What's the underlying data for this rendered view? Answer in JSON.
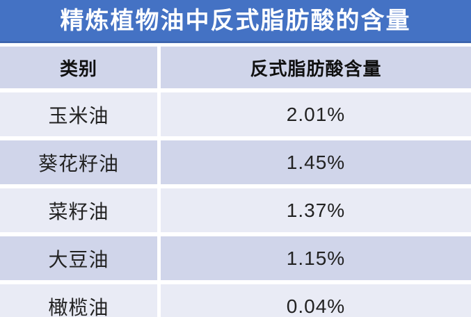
{
  "title": "精炼植物油中反式脂肪酸的含量",
  "table": {
    "columns": [
      "类别",
      "反式脂肪酸含量"
    ],
    "rows": [
      {
        "category": "玉米油",
        "value": "2.01%"
      },
      {
        "category": "葵花籽油",
        "value": "1.45%"
      },
      {
        "category": "菜籽油",
        "value": "1.37%"
      },
      {
        "category": "大豆油",
        "value": "1.15%"
      },
      {
        "category": "橄榄油",
        "value": "0.04%"
      }
    ]
  },
  "chart_data": {
    "type": "table",
    "title": "精炼植物油中反式脂肪酸的含量",
    "columns": [
      "类别",
      "反式脂肪酸含量"
    ],
    "rows": [
      [
        "玉米油",
        "2.01%"
      ],
      [
        "葵花籽油",
        "1.45%"
      ],
      [
        "菜籽油",
        "1.37%"
      ],
      [
        "大豆油",
        "1.15%"
      ],
      [
        "橄榄油",
        "0.04%"
      ]
    ],
    "categories": [
      "玉米油",
      "葵花籽油",
      "菜籽油",
      "大豆油",
      "橄榄油"
    ],
    "values_percent": [
      2.01,
      1.45,
      1.37,
      1.15,
      0.04
    ],
    "layout_hints": {
      "banded_rows": true,
      "column_alignment": "center",
      "last_row_clipped_at_bottom": true
    }
  },
  "colors": {
    "title_bar": "#4472C4",
    "title_bar_bottom_edge": "#3D65AE",
    "title_text": "#FFFFFF",
    "band_dark": "#D0D5EA",
    "band_light": "#E9EBF5",
    "separator": "#FFFFFF",
    "header_text": "#111111",
    "body_text": "#222222"
  }
}
